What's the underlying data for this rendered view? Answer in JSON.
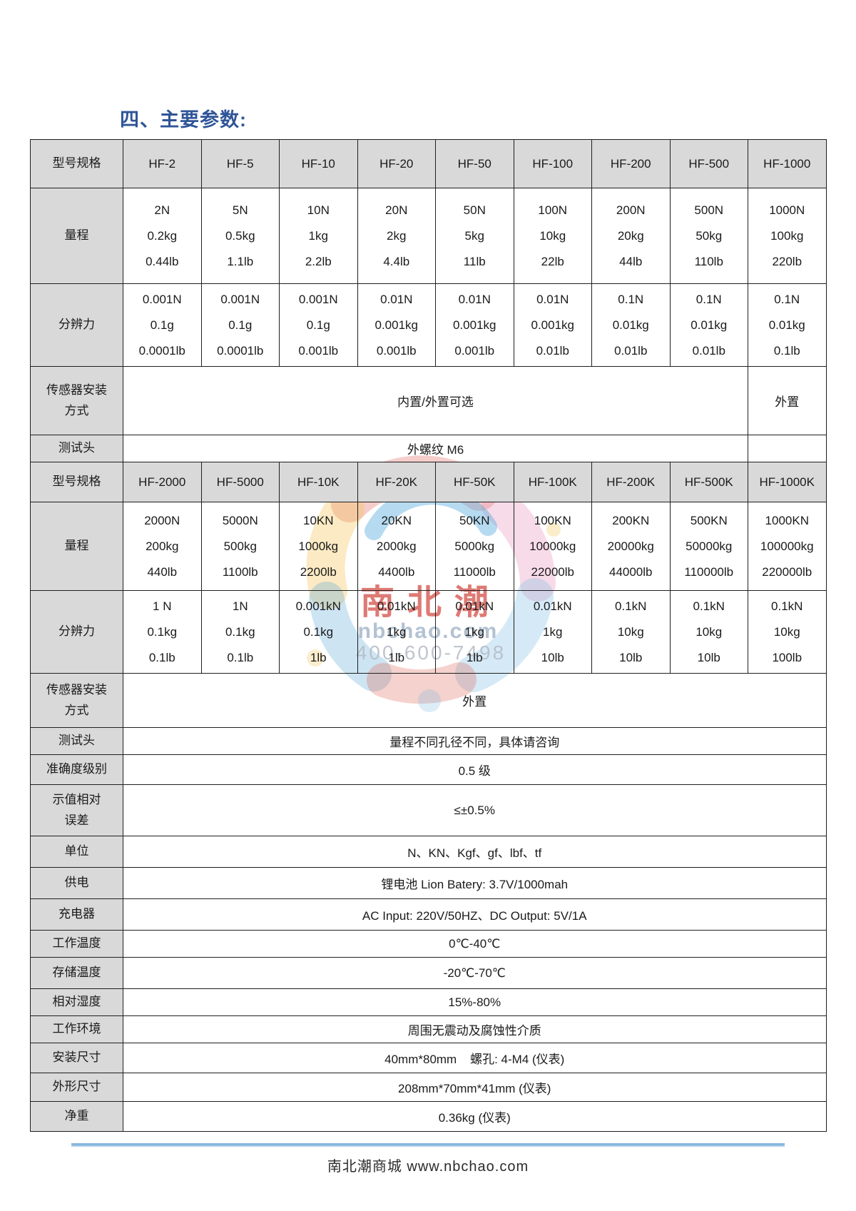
{
  "page": {
    "title": "四、主要参数:",
    "accent_color": "#2f5597"
  },
  "table1": {
    "header": {
      "label": "型号规格",
      "models": [
        "HF-2",
        "HF-5",
        "HF-10",
        "HF-20",
        "HF-50",
        "HF-100",
        "HF-200",
        "HF-500",
        "HF-1000"
      ]
    },
    "range": {
      "label": "量程",
      "values": [
        [
          "2N",
          "0.2kg",
          "0.44lb"
        ],
        [
          "5N",
          "0.5kg",
          "1.1lb"
        ],
        [
          "10N",
          "1kg",
          "2.2lb"
        ],
        [
          "20N",
          "2kg",
          "4.4lb"
        ],
        [
          "50N",
          "5kg",
          "11lb"
        ],
        [
          "100N",
          "10kg",
          "22lb"
        ],
        [
          "200N",
          "20kg",
          "44lb"
        ],
        [
          "500N",
          "50kg",
          "110lb"
        ],
        [
          "1000N",
          "100kg",
          "220lb"
        ]
      ]
    },
    "resolution": {
      "label": "分辨力",
      "values": [
        [
          "0.001N",
          "0.1g",
          "0.0001lb"
        ],
        [
          "0.001N",
          "0.1g",
          "0.0001lb"
        ],
        [
          "0.001N",
          "0.1g",
          "0.001lb"
        ],
        [
          "0.01N",
          "0.001kg",
          "0.001lb"
        ],
        [
          "0.01N",
          "0.001kg",
          "0.001lb"
        ],
        [
          "0.01N",
          "0.001kg",
          "0.01lb"
        ],
        [
          "0.1N",
          "0.01kg",
          "0.01lb"
        ],
        [
          "0.1N",
          "0.01kg",
          "0.01lb"
        ],
        [
          "0.1N",
          "0.01kg",
          "0.1lb"
        ]
      ]
    },
    "sensor": {
      "label": "传感器安装\n方式",
      "main_value": "内置/外置可选",
      "last_value": "外置"
    },
    "testhead": {
      "label": "测试头",
      "main_value": "外螺纹 M6",
      "last_value": ""
    }
  },
  "table2": {
    "header": {
      "label": "型号规格",
      "models": [
        "HF-2000",
        "HF-5000",
        "HF-10K",
        "HF-20K",
        "HF-50K",
        "HF-100K",
        "HF-200K",
        "HF-500K",
        "HF-1000K"
      ]
    },
    "range": {
      "label": "量程",
      "values": [
        [
          "2000N",
          "200kg",
          "440lb"
        ],
        [
          "5000N",
          "500kg",
          "1100lb"
        ],
        [
          "10KN",
          "1000kg",
          "2200lb"
        ],
        [
          "20KN",
          "2000kg",
          "4400lb"
        ],
        [
          "50KN",
          "5000kg",
          "11000lb"
        ],
        [
          "100KN",
          "10000kg",
          "22000lb"
        ],
        [
          "200KN",
          "20000kg",
          "44000lb"
        ],
        [
          "500KN",
          "50000kg",
          "110000lb"
        ],
        [
          "1000KN",
          "100000kg",
          "220000lb"
        ]
      ]
    },
    "resolution": {
      "label": "分辨力",
      "values": [
        [
          "1 N",
          "0.1kg",
          "0.1lb"
        ],
        [
          "1N",
          "0.1kg",
          "0.1lb"
        ],
        [
          "0.001kN",
          "0.1kg",
          "1lb"
        ],
        [
          "0.01kN",
          "1kg",
          "1lb"
        ],
        [
          "0.01kN",
          "1kg",
          "1lb"
        ],
        [
          "0.01kN",
          "1kg",
          "10lb"
        ],
        [
          "0.1kN",
          "10kg",
          "10lb"
        ],
        [
          "0.1kN",
          "10kg",
          "10lb"
        ],
        [
          "0.1kN",
          "10kg",
          "100lb"
        ]
      ]
    },
    "sensor": {
      "label": "传感器安装\n方式",
      "value": "外置"
    },
    "testhead": {
      "label": "测试头",
      "value": "量程不同孔径不同，具体请咨询"
    }
  },
  "spec_rows": [
    {
      "label": "准确度级别",
      "value": "0.5 级"
    },
    {
      "label": "示值相对\n误差",
      "value": "≤±0.5%"
    },
    {
      "label": "单位",
      "value": "N、KN、Kgf、gf、lbf、tf"
    },
    {
      "label": "供电",
      "value": "锂电池 Lion Batery: 3.7V/1000mah"
    },
    {
      "label": "充电器",
      "value": "AC Input: 220V/50HZ、DC Output: 5V/1A"
    },
    {
      "label": "工作温度",
      "value": "0℃-40℃"
    },
    {
      "label": "存储温度",
      "value": "-20℃-70℃"
    },
    {
      "label": "相对湿度",
      "value": "15%-80%"
    },
    {
      "label": "工作环境",
      "value": "周围无震动及腐蚀性介质"
    },
    {
      "label": "安装尺寸",
      "value": "40mm*80mm    螺孔: 4-M4 (仪表)"
    },
    {
      "label": "外形尺寸",
      "value": "208mm*70mm*41mm (仪表)"
    },
    {
      "label": "净重",
      "value": "0.36kg (仪表)"
    }
  ],
  "watermark": {
    "brand_chars": "南 北 潮",
    "line1": "nbchao.com",
    "line2": "400-600-7498",
    "brand_red": "#d24840"
  },
  "footer": {
    "text": "南北潮商城  www.nbchao.com"
  }
}
